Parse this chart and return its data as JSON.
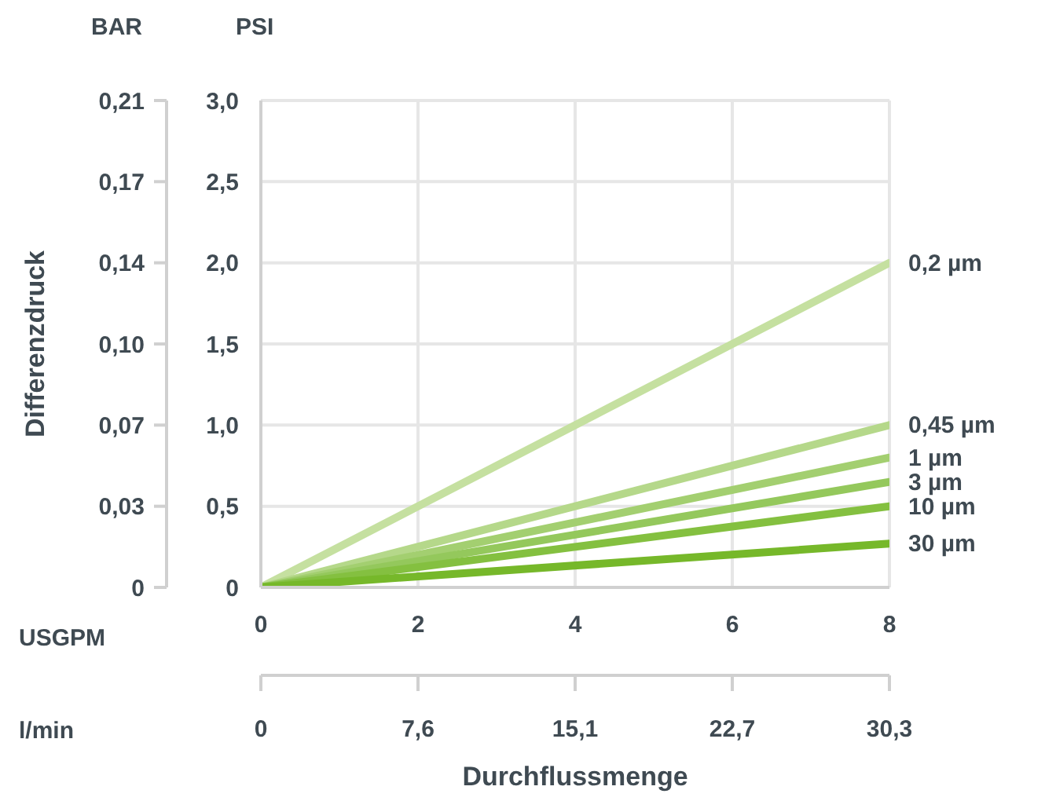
{
  "chart_data": {
    "type": "line",
    "xlabel": "Durchflussmenge",
    "y2label": "Differenzdruck",
    "annotations": [
      "BAR",
      "PSI",
      "USGPM",
      "l/min"
    ],
    "xlim": [
      0,
      8
    ],
    "xticks": [
      0,
      2,
      4,
      6,
      8
    ],
    "ylim": [
      0,
      3
    ],
    "yticks": [
      0,
      {
        "value": 0.5,
        "label": "0,5"
      },
      {
        "value": 1,
        "label": "1,0"
      },
      {
        "value": 1.5,
        "label": "1,5"
      },
      {
        "value": 2,
        "label": "2,0"
      },
      {
        "value": 2.5,
        "label": "2,5"
      },
      {
        "value": 3,
        "label": "3,0"
      }
    ],
    "y2lim": [
      0,
      0.207
    ],
    "y2ticks": [
      0,
      {
        "value": 0.0345,
        "label": "0,03"
      },
      {
        "value": 0.069,
        "label": "0,07"
      },
      {
        "value": 0.1035,
        "label": "0,10"
      },
      {
        "value": 0.138,
        "label": "0,14"
      },
      {
        "value": 0.1725,
        "label": "0,17"
      },
      {
        "value": 0.207,
        "label": "0,21"
      }
    ],
    "x2lim": [
      0,
      30.28
    ],
    "x2ticks": [
      0,
      {
        "value": 7.57,
        "label": "7,6"
      },
      {
        "value": 15.14,
        "label": "15,1"
      },
      {
        "value": 22.71,
        "label": "22,7"
      },
      {
        "value": 30.28,
        "label": "30,3"
      }
    ],
    "grid": true,
    "marker": "none",
    "line_style": "solid",
    "x": [
      0,
      8
    ],
    "series": [
      {
        "name": "0,2 µm",
        "color": "#c5e0a0",
        "values": [
          0,
          2.0
        ]
      },
      {
        "name": "0,45 µm",
        "color": "#b5d88a",
        "values": [
          0,
          1.0
        ]
      },
      {
        "name": "1 µm",
        "color": "#a3cf70",
        "values": [
          0,
          0.8
        ]
      },
      {
        "name": "3 µm",
        "color": "#94c85c",
        "values": [
          0,
          0.65
        ]
      },
      {
        "name": "10 µm",
        "color": "#84c040",
        "values": [
          0,
          0.5
        ]
      },
      {
        "name": "30 µm",
        "color": "#76b82a",
        "values": [
          0,
          0.27
        ]
      }
    ]
  }
}
